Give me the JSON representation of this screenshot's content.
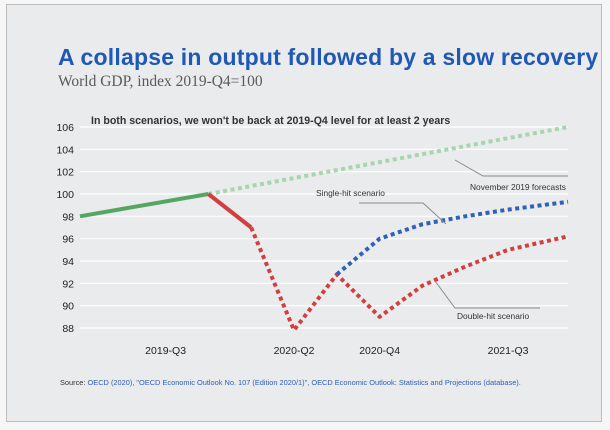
{
  "header": {
    "title": "A collapse in output followed by a slow recovery",
    "subtitle": "World GDP, index 2019-Q4=100"
  },
  "source": {
    "prefix": "Source:",
    "text": "OECD (2020), \"OECD Economic Outlook No. 107 (Edition 2020/1)\", OECD Economic Outlook: Statistics and Projections (database)."
  },
  "colors": {
    "actual": "#55a662",
    "forecast": "#a8d4ae",
    "decline": "#d23f3f",
    "single_hit": "#2d62b8",
    "double_hit": "#d23f3f",
    "grid": "#ffffff",
    "text": "#333333"
  },
  "chart_data": {
    "type": "line",
    "title": "A collapse in output followed by a slow recovery",
    "subtitle": "World GDP, index 2019-Q4=100",
    "annotation": "In both scenarios, we won't be back at 2019-Q4 level for at least 2 years",
    "x_tick_labels": [
      "2019-Q3",
      "2020-Q2",
      "2020-Q4",
      "2021-Q3"
    ],
    "x_ticks": [
      {
        "label": "2019-Q3",
        "x": 2019.5
      },
      {
        "label": "2020-Q2",
        "x": 2020.25
      },
      {
        "label": "2020-Q4",
        "x": 2020.75
      },
      {
        "label": "2021-Q3",
        "x": 2021.5
      }
    ],
    "xlim": [
      2019.0,
      2021.85
    ],
    "ylim": [
      87,
      106.5
    ],
    "y_ticks": [
      88,
      90,
      92,
      94,
      96,
      98,
      100,
      102,
      104,
      106
    ],
    "grid": "horizontal",
    "series": [
      {
        "name": "",
        "style": "solid",
        "color_key": "actual",
        "points": [
          [
            2019.0,
            98.0
          ],
          [
            2019.75,
            100.0
          ]
        ]
      },
      {
        "name": "November 2019 forecasts",
        "style": "dotted",
        "color_key": "forecast",
        "points": [
          [
            2019.75,
            100.0
          ],
          [
            2021.85,
            106.0
          ]
        ]
      },
      {
        "name": "",
        "style": "solid",
        "color_key": "decline",
        "points": [
          [
            2019.75,
            100.0
          ],
          [
            2020.0,
            97.0
          ]
        ]
      },
      {
        "name": "Double-hit scenario",
        "style": "dotted",
        "color_key": "double_hit",
        "points": [
          [
            2020.0,
            97.0
          ],
          [
            2020.25,
            87.8
          ],
          [
            2020.5,
            92.8
          ],
          [
            2020.75,
            89.0
          ],
          [
            2021.0,
            91.8
          ],
          [
            2021.25,
            93.5
          ],
          [
            2021.5,
            95.0
          ],
          [
            2021.85,
            96.2
          ]
        ]
      },
      {
        "name": "Single-hit scenario",
        "style": "dotted",
        "color_key": "single_hit",
        "points": [
          [
            2020.5,
            92.8
          ],
          [
            2020.75,
            96.0
          ],
          [
            2021.0,
            97.3
          ],
          [
            2021.25,
            98.0
          ],
          [
            2021.5,
            98.6
          ],
          [
            2021.85,
            99.3
          ]
        ]
      }
    ],
    "callouts": [
      {
        "text": "November 2019 forecasts",
        "anchor": [
          2020.9,
          103.8
        ]
      },
      {
        "text": "Single-hit scenario",
        "anchor": [
          2020.9,
          96.8
        ]
      },
      {
        "text": "Double-hit scenario",
        "anchor": [
          2020.9,
          91.4
        ]
      }
    ]
  }
}
